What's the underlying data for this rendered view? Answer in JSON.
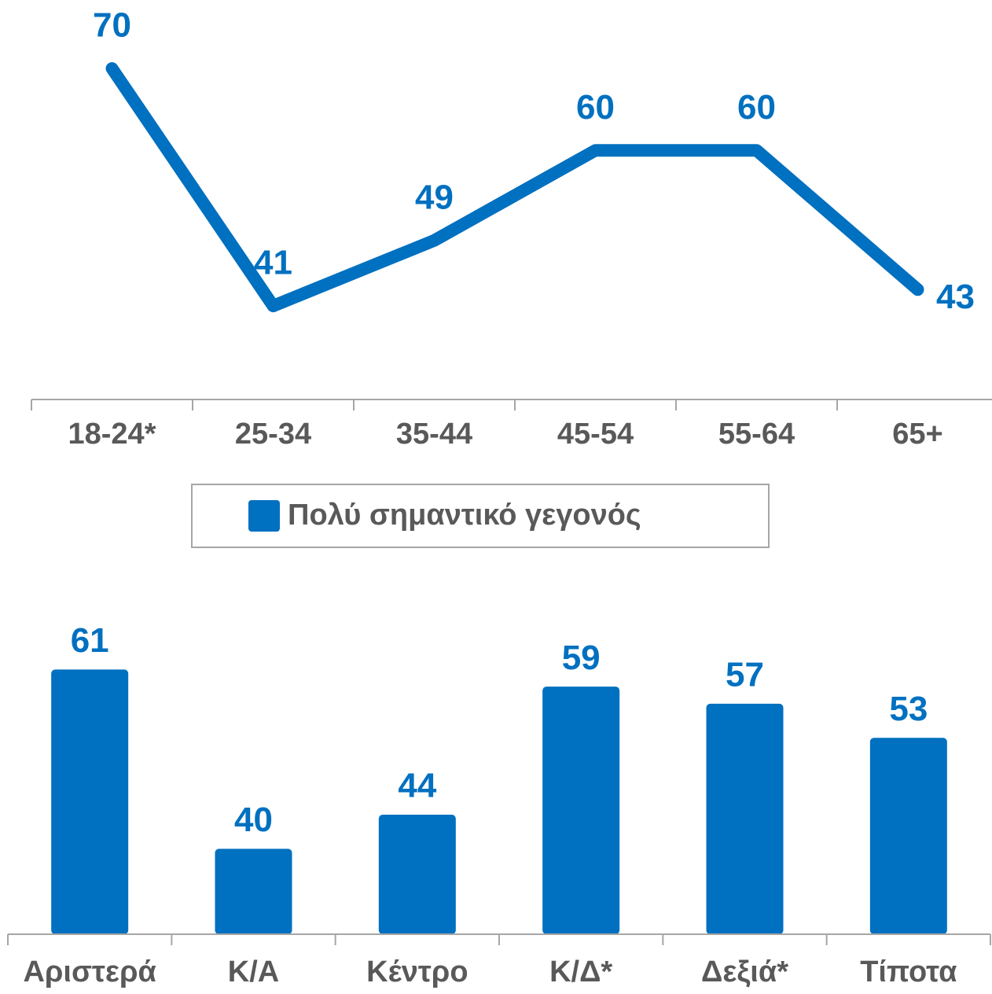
{
  "chart_data": [
    {
      "type": "line",
      "categories": [
        "18-24*",
        "25-34",
        "35-44",
        "45-54",
        "55-64",
        "65+"
      ],
      "series": [
        {
          "name": "Πολύ σημαντικό γεγονός",
          "color": "#0070c0",
          "values": [
            70,
            41,
            49,
            60,
            60,
            43
          ]
        }
      ],
      "ylim": [
        0,
        75
      ],
      "legend": "bottom"
    },
    {
      "type": "bar",
      "categories": [
        "Αριστερά",
        "Κ/Α",
        "Κέντρο",
        "Κ/Δ*",
        "Δεξιά*",
        "Τίποτα"
      ],
      "values": [
        61,
        40,
        44,
        59,
        57,
        53
      ],
      "color": "#0070c0",
      "ylim": [
        30,
        65
      ]
    }
  ]
}
